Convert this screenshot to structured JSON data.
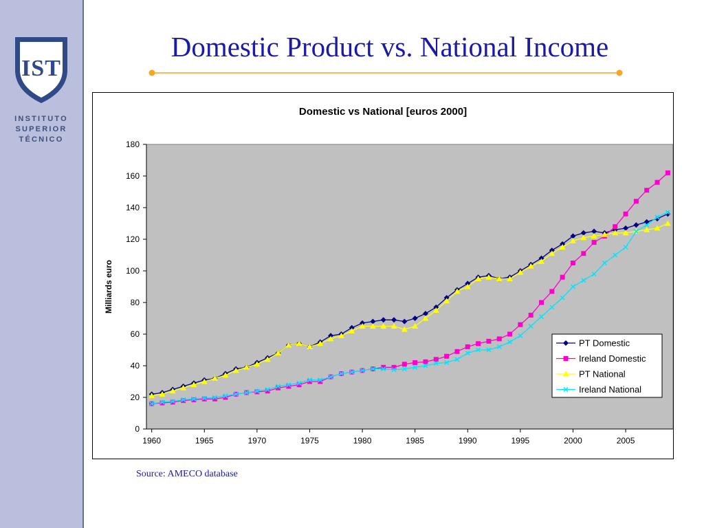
{
  "slide": {
    "title": "Domestic Product vs. National Income",
    "source": "Source: AMECO database"
  },
  "sidebar": {
    "logo_monogram": "IST",
    "institution_lines": [
      "INSTITUTO",
      "SUPERIOR",
      "TÉCNICO"
    ]
  },
  "colors": {
    "sidebar_bg": "#b9bfdc",
    "title_text": "#1a1aa6",
    "rule": "#f5a623",
    "plot_bg": "#c0c0c0"
  },
  "chart_data": {
    "type": "line",
    "title": "Domestic vs National [euros 2000]",
    "xlabel": "",
    "ylabel": "Milliards euro",
    "xlim": [
      1959.5,
      2009.5
    ],
    "ylim": [
      0,
      180
    ],
    "x_ticks": [
      1960,
      1965,
      1970,
      1975,
      1980,
      1985,
      1990,
      1995,
      2000,
      2005
    ],
    "y_ticks": [
      0,
      20,
      40,
      60,
      80,
      100,
      120,
      140,
      160,
      180
    ],
    "grid": false,
    "legend_position": "right-middle",
    "x": [
      1960,
      1961,
      1962,
      1963,
      1964,
      1965,
      1966,
      1967,
      1968,
      1969,
      1970,
      1971,
      1972,
      1973,
      1974,
      1975,
      1976,
      1977,
      1978,
      1979,
      1980,
      1981,
      1982,
      1983,
      1984,
      1985,
      1986,
      1987,
      1988,
      1989,
      1990,
      1991,
      1992,
      1993,
      1994,
      1995,
      1996,
      1997,
      1998,
      1999,
      2000,
      2001,
      2002,
      2003,
      2004,
      2005,
      2006,
      2007,
      2008,
      2009
    ],
    "series": [
      {
        "name": "PT Domestic",
        "color": "#000080",
        "marker": "diamond",
        "values": [
          22,
          23,
          25,
          27,
          29,
          31,
          32,
          35,
          38,
          39,
          42,
          45,
          48,
          53,
          54,
          52,
          55,
          59,
          60,
          64,
          67,
          68,
          69,
          69,
          68,
          70,
          73,
          77,
          83,
          88,
          92,
          96,
          97,
          95,
          96,
          100,
          104,
          108,
          113,
          117,
          122,
          124,
          125,
          124,
          126,
          127,
          129,
          131,
          133,
          136
        ]
      },
      {
        "name": "Ireland Domestic",
        "color": "#ff00cc",
        "marker": "square",
        "values": [
          16,
          16.5,
          17,
          18,
          18.5,
          19,
          19,
          20,
          22,
          23,
          23.5,
          24,
          26,
          27,
          28,
          30,
          30,
          33,
          35,
          36,
          37,
          38,
          39,
          39,
          41,
          42,
          42.5,
          44,
          46,
          49,
          52,
          54,
          55.5,
          57,
          60,
          66,
          72,
          80,
          87,
          96,
          105,
          111,
          118,
          122,
          128,
          136,
          144,
          151,
          156,
          162
        ]
      },
      {
        "name": "PT National",
        "color": "#ffff00",
        "marker": "triangle",
        "values": [
          21,
          22,
          24,
          26,
          28,
          30,
          32,
          34,
          37,
          39,
          41,
          44,
          48,
          53,
          54,
          52,
          54,
          57,
          59,
          62,
          65,
          65,
          65,
          65,
          63,
          65,
          70,
          75,
          81,
          87,
          90,
          95,
          96,
          95,
          95,
          99,
          103,
          106,
          111,
          115,
          119,
          121,
          122,
          123,
          124,
          124,
          125,
          126,
          127,
          130
        ]
      },
      {
        "name": "Ireland National",
        "color": "#00e5ff",
        "marker": "x",
        "values": [
          16,
          17,
          17.5,
          18.5,
          19,
          19.5,
          20,
          21,
          22,
          23,
          24,
          25,
          27,
          28,
          29,
          31,
          31,
          33,
          35,
          36,
          37,
          38,
          38,
          37.5,
          38,
          39,
          40,
          41.5,
          42,
          44,
          48,
          50,
          50,
          52,
          55,
          59,
          65,
          71,
          77,
          83,
          90,
          94,
          98,
          105,
          110,
          115,
          125,
          129,
          134,
          137
        ]
      }
    ]
  }
}
